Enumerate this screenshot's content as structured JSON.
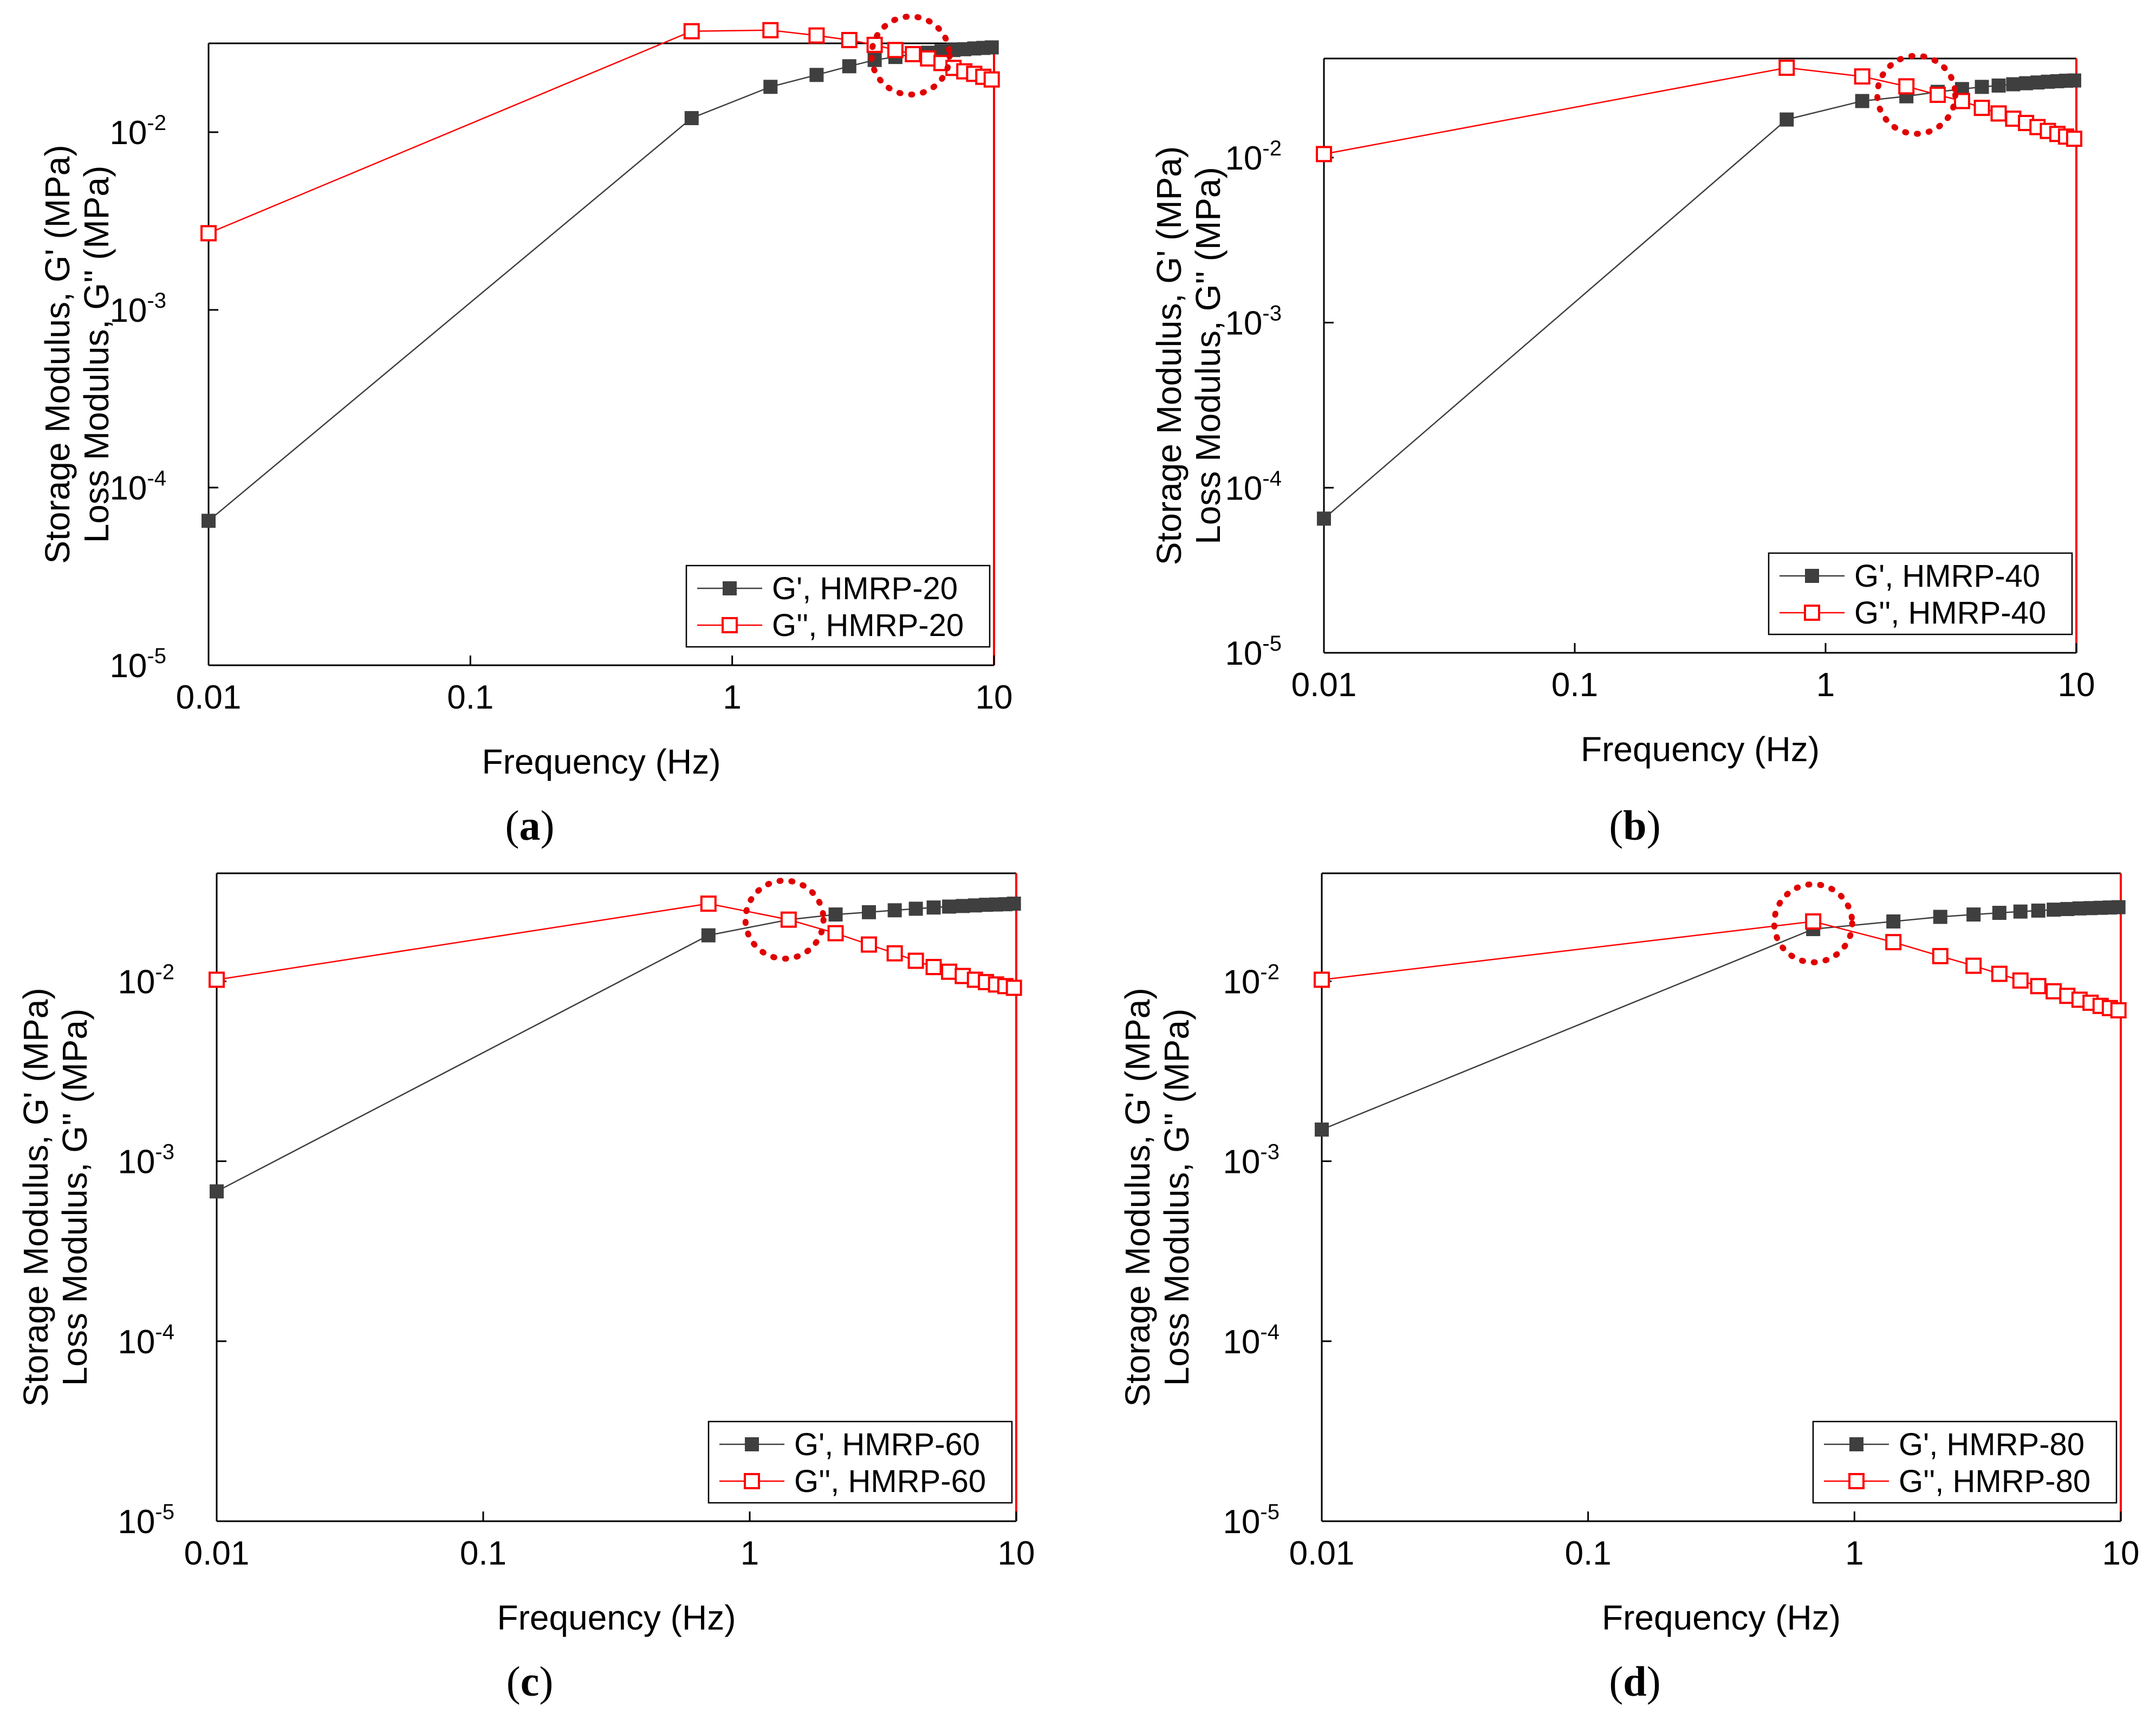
{
  "figure": {
    "ylabel_line1": "Storage Modulus, G' (MPa)",
    "ylabel_line2": "Loss Modulus, G'' (MPa)",
    "xlabel": "Frequency (Hz)"
  },
  "colors": {
    "storage": "#3f3f3f",
    "loss": "#ff0000",
    "highlight": "#e00000",
    "axis": "#000000",
    "right_axis": "#ff0000"
  },
  "icons": {
    "storage_marker": "filled-square-icon",
    "loss_marker": "open-square-icon",
    "crossover_marker": "dotted-circle-icon"
  },
  "chart_data": [
    {
      "id": "a",
      "caption_open": "(",
      "caption_letter": "a",
      "caption_close": ")",
      "type": "line",
      "scale": "log-log",
      "xlabel": "Frequency (Hz)",
      "ylabel": "Storage Modulus, G' (MPa) / Loss Modulus, G'' (MPa)",
      "xlim": [
        0.01,
        10
      ],
      "ylim_exp": [
        -5,
        -1.5
      ],
      "x_ticks": [
        "0.01",
        "0.1",
        "1",
        "10"
      ],
      "y_ticks": [
        {
          "base": "10",
          "exp": "-5"
        },
        {
          "base": "10",
          "exp": "-4"
        },
        {
          "base": "10",
          "exp": "-3"
        },
        {
          "base": "10",
          "exp": "-2"
        }
      ],
      "legend_position": "bottom-right",
      "crossover_hz": 4.8,
      "crossover_mpa": 0.027,
      "series": [
        {
          "name": "G', HMRP-20",
          "kind": "storage",
          "x": [
            0.01,
            0.7,
            1.4,
            2.1,
            2.8,
            3.5,
            4.2,
            4.9,
            5.6,
            6.3,
            7.0,
            7.7,
            8.4,
            9.1,
            9.8
          ],
          "y": [
            6.5e-05,
            0.012,
            0.018,
            0.021,
            0.0235,
            0.0255,
            0.0265,
            0.0275,
            0.028,
            0.0285,
            0.029,
            0.0293,
            0.0296,
            0.0298,
            0.03
          ]
        },
        {
          "name": "G'', HMRP-20",
          "kind": "loss",
          "x": [
            0.01,
            0.7,
            1.4,
            2.1,
            2.8,
            3.5,
            4.2,
            4.9,
            5.6,
            6.3,
            7.0,
            7.7,
            8.4,
            9.1,
            9.8
          ],
          "y": [
            0.0027,
            0.037,
            0.0375,
            0.035,
            0.033,
            0.031,
            0.029,
            0.0275,
            0.026,
            0.0245,
            0.023,
            0.022,
            0.0213,
            0.0205,
            0.0198
          ]
        }
      ]
    },
    {
      "id": "b",
      "caption_open": "(",
      "caption_letter": "b",
      "caption_close": ")",
      "type": "line",
      "scale": "log-log",
      "xlabel": "Frequency (Hz)",
      "ylabel": "Storage Modulus, G' (MPa) / Loss Modulus, G'' (MPa)",
      "xlim": [
        0.01,
        10
      ],
      "ylim_exp": [
        -5,
        -1.4
      ],
      "x_ticks": [
        "0.01",
        "0.1",
        "1",
        "10"
      ],
      "y_ticks": [
        {
          "base": "10",
          "exp": "-5"
        },
        {
          "base": "10",
          "exp": "-4"
        },
        {
          "base": "10",
          "exp": "-3"
        },
        {
          "base": "10",
          "exp": "-2"
        }
      ],
      "legend_position": "bottom-right",
      "crossover_hz": 2.3,
      "crossover_mpa": 0.024,
      "series": [
        {
          "name": "G', HMRP-40",
          "kind": "storage",
          "x": [
            0.01,
            0.7,
            1.4,
            2.1,
            2.8,
            3.5,
            4.2,
            4.9,
            5.6,
            6.3,
            7.0,
            7.7,
            8.4,
            9.1,
            9.8
          ],
          "y": [
            6.5e-05,
            0.017,
            0.022,
            0.0235,
            0.025,
            0.026,
            0.0268,
            0.0273,
            0.0278,
            0.0282,
            0.0285,
            0.0288,
            0.029,
            0.0292,
            0.0293
          ]
        },
        {
          "name": "G'', HMRP-40",
          "kind": "loss",
          "x": [
            0.01,
            0.7,
            1.4,
            2.1,
            2.8,
            3.5,
            4.2,
            4.9,
            5.6,
            6.3,
            7.0,
            7.7,
            8.4,
            9.1,
            9.8
          ],
          "y": [
            0.0105,
            0.035,
            0.031,
            0.027,
            0.024,
            0.022,
            0.02,
            0.0185,
            0.0172,
            0.0162,
            0.0153,
            0.0145,
            0.0139,
            0.0134,
            0.013
          ]
        }
      ]
    },
    {
      "id": "c",
      "caption_open": "(",
      "caption_letter": "c",
      "caption_close": ")",
      "type": "line",
      "scale": "log-log",
      "xlabel": "Frequency (Hz)",
      "ylabel": "Storage Modulus, G' (MPa) / Loss Modulus, G'' (MPa)",
      "xlim": [
        0.01,
        10
      ],
      "ylim_exp": [
        -5,
        -1.4
      ],
      "x_ticks": [
        "0.01",
        "0.1",
        "1",
        "10"
      ],
      "y_ticks": [
        {
          "base": "10",
          "exp": "-5"
        },
        {
          "base": "10",
          "exp": "-4"
        },
        {
          "base": "10",
          "exp": "-3"
        },
        {
          "base": "10",
          "exp": "-2"
        }
      ],
      "legend_position": "bottom-right",
      "crossover_hz": 1.35,
      "crossover_mpa": 0.022,
      "series": [
        {
          "name": "G', HMRP-60",
          "kind": "storage",
          "x": [
            0.01,
            0.7,
            1.4,
            2.1,
            2.8,
            3.5,
            4.2,
            4.9,
            5.6,
            6.3,
            7.0,
            7.7,
            8.4,
            9.1,
            9.8
          ],
          "y": [
            0.00068,
            0.018,
            0.022,
            0.0235,
            0.0242,
            0.0248,
            0.0253,
            0.0257,
            0.026,
            0.0262,
            0.0264,
            0.0266,
            0.0267,
            0.0268,
            0.027
          ]
        },
        {
          "name": "G'', HMRP-60",
          "kind": "loss",
          "x": [
            0.01,
            0.7,
            1.4,
            2.1,
            2.8,
            3.5,
            4.2,
            4.9,
            5.6,
            6.3,
            7.0,
            7.7,
            8.4,
            9.1,
            9.8
          ],
          "y": [
            0.0102,
            0.027,
            0.022,
            0.0185,
            0.016,
            0.0143,
            0.013,
            0.012,
            0.0113,
            0.0107,
            0.0102,
            0.0099,
            0.0096,
            0.0094,
            0.0092
          ]
        }
      ]
    },
    {
      "id": "d",
      "caption_open": "(",
      "caption_letter": "d",
      "caption_close": ")",
      "type": "line",
      "scale": "log-log",
      "xlabel": "Frequency (Hz)",
      "ylabel": "Storage Modulus, G' (MPa) / Loss Modulus, G'' (MPa)",
      "xlim": [
        0.01,
        10
      ],
      "ylim_exp": [
        -5,
        -1.4
      ],
      "x_ticks": [
        "0.01",
        "0.1",
        "1",
        "10"
      ],
      "y_ticks": [
        {
          "base": "10",
          "exp": "-5"
        },
        {
          "base": "10",
          "exp": "-4"
        },
        {
          "base": "10",
          "exp": "-3"
        },
        {
          "base": "10",
          "exp": "-2"
        }
      ],
      "legend_position": "bottom-right",
      "crossover_hz": 0.7,
      "crossover_mpa": 0.021,
      "series": [
        {
          "name": "G', HMRP-80",
          "kind": "storage",
          "x": [
            0.01,
            0.7,
            1.4,
            2.1,
            2.8,
            3.5,
            4.2,
            4.9,
            5.6,
            6.3,
            7.0,
            7.7,
            8.4,
            9.1,
            9.8
          ],
          "y": [
            0.0015,
            0.0195,
            0.0215,
            0.0228,
            0.0235,
            0.024,
            0.0244,
            0.0247,
            0.025,
            0.0252,
            0.0254,
            0.0255,
            0.0256,
            0.0257,
            0.0258
          ]
        },
        {
          "name": "G'', HMRP-80",
          "kind": "loss",
          "x": [
            0.01,
            0.7,
            1.4,
            2.1,
            2.8,
            3.5,
            4.2,
            4.9,
            5.6,
            6.3,
            7.0,
            7.7,
            8.4,
            9.1,
            9.8
          ],
          "y": [
            0.0102,
            0.0215,
            0.0165,
            0.0138,
            0.0122,
            0.011,
            0.0101,
            0.0094,
            0.0088,
            0.0083,
            0.0079,
            0.0076,
            0.0073,
            0.0071,
            0.0069
          ]
        }
      ]
    }
  ]
}
